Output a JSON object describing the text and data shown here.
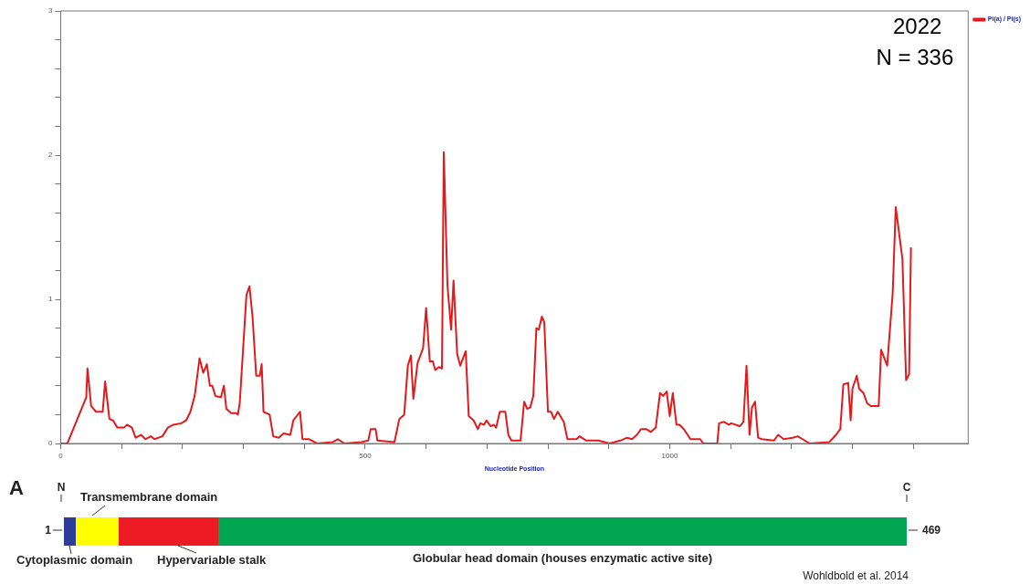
{
  "chart_data": [
    {
      "type": "line",
      "xlabel": "Nucleotide Position",
      "legend": "top right",
      "marker": "none",
      "line_style": "solid",
      "annotations": [
        "2022",
        "N = 336"
      ],
      "xlim": [
        0,
        1490
      ],
      "ylim": [
        0,
        3
      ],
      "xticks": [
        0,
        {
          "value": 100,
          "label": null
        },
        {
          "value": 200,
          "label": null
        },
        {
          "value": 300,
          "label": null
        },
        {
          "value": 400,
          "label": null
        },
        500,
        {
          "value": 600,
          "label": null
        },
        {
          "value": 700,
          "label": null
        },
        {
          "value": 800,
          "label": null
        },
        {
          "value": 900,
          "label": null
        },
        1000,
        {
          "value": 1100,
          "label": null
        },
        {
          "value": 1200,
          "label": null
        },
        {
          "value": 1300,
          "label": null
        },
        {
          "value": 1400,
          "label": null
        }
      ],
      "yticks": [
        0,
        {
          "value": 0.2,
          "label": null
        },
        {
          "value": 0.4,
          "label": null
        },
        {
          "value": 0.6,
          "label": null
        },
        {
          "value": 0.8,
          "label": null
        },
        1,
        {
          "value": 1.2,
          "label": null
        },
        {
          "value": 1.4,
          "label": null
        },
        {
          "value": 1.6,
          "label": null
        },
        {
          "value": 1.8,
          "label": null
        },
        2,
        {
          "value": 2.2,
          "label": null
        },
        {
          "value": 2.4,
          "label": null
        },
        {
          "value": 2.6,
          "label": null
        },
        {
          "value": 2.8,
          "label": null
        },
        3
      ],
      "x": [
        0,
        11,
        42,
        44,
        50,
        58,
        69,
        73,
        80,
        86,
        93,
        104,
        109,
        117,
        123,
        132,
        139,
        148,
        154,
        167,
        176,
        185,
        198,
        206,
        213,
        220,
        228,
        234,
        240,
        245,
        249,
        254,
        263,
        268,
        272,
        280,
        288,
        291,
        294,
        305,
        310,
        315,
        321,
        327,
        330,
        333,
        343,
        349,
        358,
        366,
        377,
        382,
        393,
        397,
        408,
        421,
        447,
        455,
        466,
        494,
        505,
        509,
        517,
        520,
        548,
        556,
        564,
        570,
        575,
        579,
        586,
        595,
        600,
        606,
        611,
        615,
        621,
        626,
        629,
        635,
        641,
        645,
        651,
        656,
        665,
        670,
        678,
        685,
        689,
        695,
        699,
        706,
        711,
        715,
        721,
        730,
        735,
        740,
        755,
        761,
        766,
        771,
        776,
        781,
        785,
        790,
        794,
        800,
        805,
        810,
        816,
        826,
        832,
        847,
        852,
        863,
        883,
        901,
        919,
        930,
        938,
        946,
        953,
        961,
        969,
        977,
        984,
        989,
        995,
        1000,
        1005,
        1011,
        1016,
        1023,
        1034,
        1042,
        1050,
        1055,
        1078,
        1081,
        1089,
        1097,
        1101,
        1115,
        1121,
        1126,
        1131,
        1135,
        1140,
        1145,
        1151,
        1171,
        1178,
        1187,
        1202,
        1210,
        1218,
        1230,
        1262,
        1273,
        1280,
        1285,
        1293,
        1297,
        1300,
        1307,
        1311,
        1318,
        1324,
        1330,
        1343,
        1347,
        1357,
        1366,
        1371,
        1382,
        1388,
        1393,
        1396
      ],
      "series": [
        {
          "name": "Pi(a) / Pi(s)",
          "color": "#e31a1c",
          "values": [
            0,
            0,
            0.32,
            0.52,
            0.26,
            0.22,
            0.22,
            0.43,
            0.17,
            0.16,
            0.11,
            0.11,
            0.13,
            0.11,
            0.04,
            0.06,
            0.03,
            0.05,
            0.03,
            0.05,
            0.11,
            0.13,
            0.14,
            0.16,
            0.22,
            0.33,
            0.59,
            0.49,
            0.55,
            0.4,
            0.4,
            0.33,
            0.32,
            0.4,
            0.24,
            0.21,
            0.21,
            0.2,
            0.28,
            1.03,
            1.09,
            0.88,
            0.47,
            0.47,
            0.55,
            0.22,
            0.2,
            0.05,
            0.04,
            0.07,
            0.06,
            0.16,
            0.22,
            0.03,
            0.03,
            0,
            0.01,
            0.03,
            0,
            0.01,
            0.02,
            0.1,
            0.1,
            0.02,
            0.01,
            0.17,
            0.2,
            0.54,
            0.61,
            0.31,
            0.56,
            0.66,
            0.94,
            0.57,
            0.57,
            0.51,
            0.53,
            0.52,
            2.02,
            1.1,
            0.79,
            1.13,
            0.62,
            0.54,
            0.64,
            0.19,
            0.16,
            0.1,
            0.14,
            0.13,
            0.16,
            0.12,
            0.13,
            0.11,
            0.22,
            0.22,
            0.06,
            0.02,
            0.02,
            0.29,
            0.24,
            0.25,
            0.33,
            0.8,
            0.79,
            0.88,
            0.84,
            0.22,
            0.22,
            0.17,
            0.22,
            0.15,
            0.03,
            0.03,
            0.05,
            0.02,
            0.02,
            0,
            0.02,
            0.04,
            0.03,
            0.06,
            0.1,
            0.1,
            0.08,
            0.11,
            0.35,
            0.33,
            0.36,
            0.19,
            0.35,
            0.13,
            0.13,
            0.1,
            0.03,
            0.03,
            0.03,
            0,
            0,
            0.14,
            0.15,
            0.13,
            0.14,
            0.12,
            0.15,
            0.54,
            0.06,
            0.25,
            0.29,
            0.04,
            0.03,
            0.02,
            0.06,
            0.03,
            0.04,
            0.05,
            0.03,
            0,
            0.01,
            0.06,
            0.1,
            0.41,
            0.42,
            0.16,
            0.38,
            0.47,
            0.38,
            0.35,
            0.28,
            0.26,
            0.26,
            0.65,
            0.54,
            1.04,
            1.64,
            1.28,
            0.44,
            0.48,
            1.36
          ]
        }
      ]
    },
    {
      "type": "other",
      "annotations": [
        "A",
        "N",
        "C",
        "Transmembrane domain",
        "1",
        "469",
        "Cytoplasmic domain",
        "Hypervariable stalk",
        "Globular head domain (houses enzymatic active site)",
        "Wohldbold et al. 2014"
      ]
    }
  ]
}
